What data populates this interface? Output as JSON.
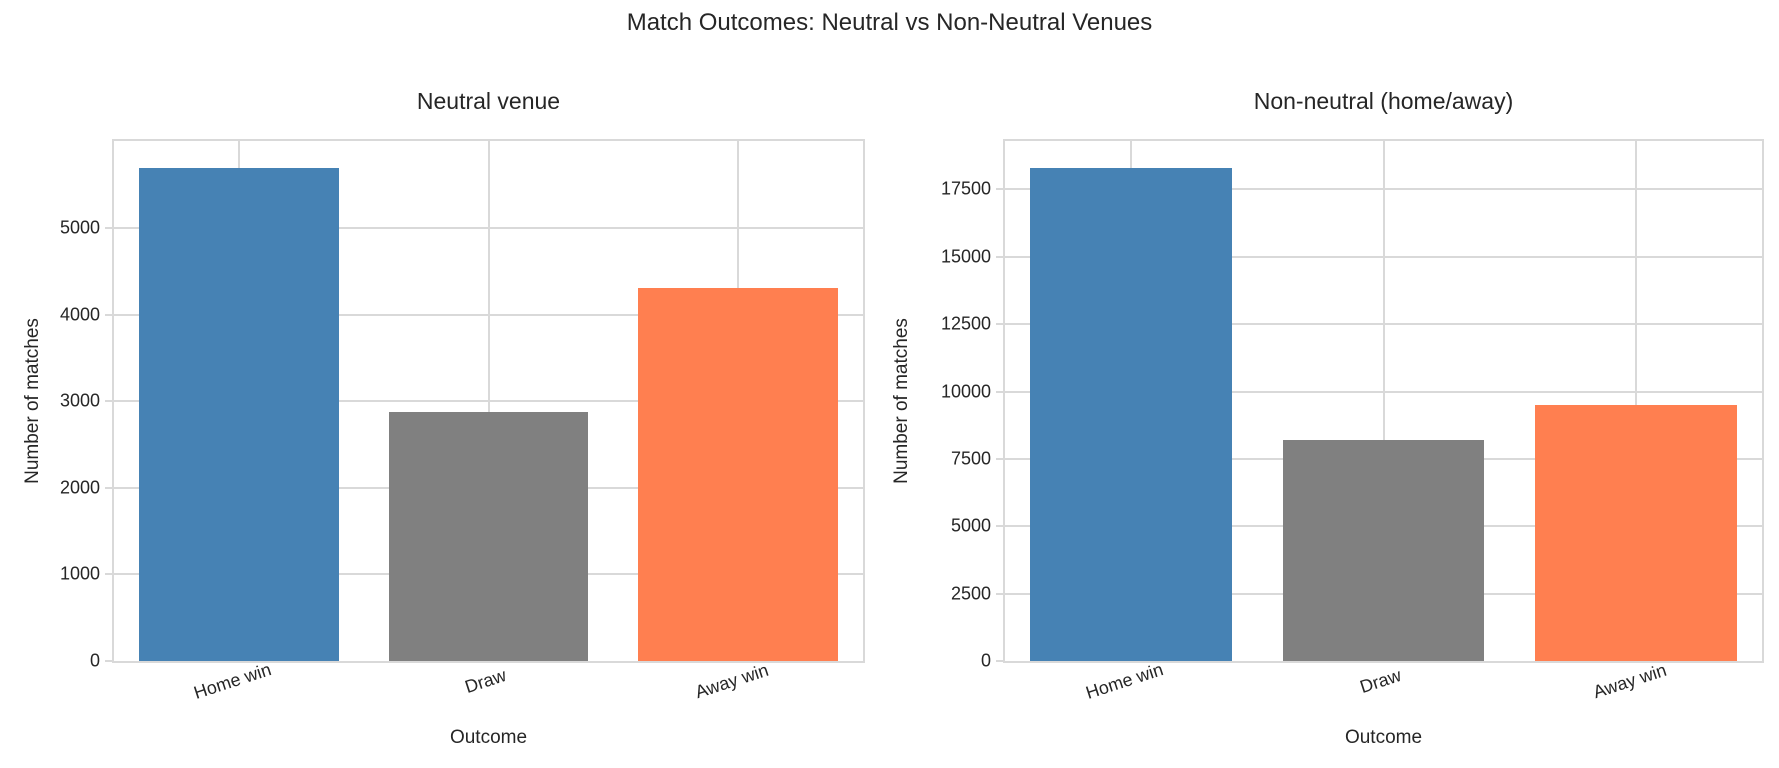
{
  "figure": {
    "title": "Match Outcomes: Neutral vs Non-Neutral Venues",
    "background_color": "#ffffff",
    "text_color": "#262626",
    "grid_color": "#d9d9d9"
  },
  "chart_data": [
    {
      "type": "bar",
      "title": "Neutral venue",
      "xlabel": "Outcome",
      "ylabel": "Number of matches",
      "categories": [
        "Home win",
        "Draw",
        "Away win"
      ],
      "values": [
        5700,
        2880,
        4310
      ],
      "bar_colors": [
        "#4682B4",
        "#808080",
        "#FF7F50"
      ],
      "yticks": [
        0,
        1000,
        2000,
        3000,
        4000,
        5000
      ],
      "ylim": [
        0,
        6010
      ],
      "grid": true,
      "legend": "none",
      "xtick_rotation_deg": 18,
      "bar_width_fraction": 0.8
    },
    {
      "type": "bar",
      "title": "Non-neutral (home/away)",
      "xlabel": "Outcome",
      "ylabel": "Number of matches",
      "categories": [
        "Home win",
        "Draw",
        "Away win"
      ],
      "values": [
        18300,
        8200,
        9500
      ],
      "bar_colors": [
        "#4682B4",
        "#808080",
        "#FF7F50"
      ],
      "yticks": [
        0,
        2500,
        5000,
        7500,
        10000,
        12500,
        15000,
        17500
      ],
      "ylim": [
        0,
        19300
      ],
      "grid": true,
      "legend": "none",
      "xtick_rotation_deg": 18,
      "bar_width_fraction": 0.8
    }
  ]
}
